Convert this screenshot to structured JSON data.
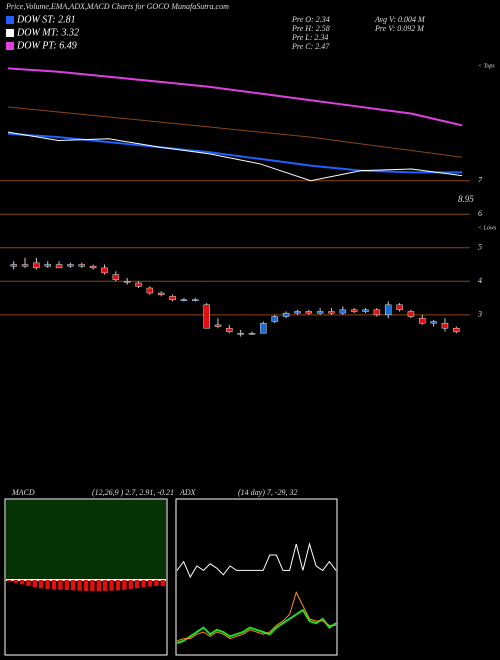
{
  "header": {
    "title": "Price,Volume,EMA,ADX,MACD Charts for GOCO MunafaSutra.com"
  },
  "legend": [
    {
      "label": "DOW ST: 2.81",
      "color": "#2060ff"
    },
    {
      "label": "DOW MT: 3.32",
      "color": "#ffffff"
    },
    {
      "label": "DOW PT: 6.49",
      "color": "#e040e0"
    }
  ],
  "info": [
    "Pre  O: 2.34",
    "Pre  H: 2.58",
    "Pre  L: 2.34",
    "Pre  C: 2.47",
    "Avg  V: 0.004  M",
    "Pre  V: 0.092  M"
  ],
  "price_panel": {
    "ylim": [
      2.1,
      10.6
    ],
    "yticks": [
      3,
      4,
      5,
      6,
      7
    ],
    "annotations": [
      "8.95",
      "< Tops",
      "< Lows"
    ],
    "up_color": "#1a6ad8",
    "down_color": "#e01010",
    "candles": [
      [
        4.45,
        4.6,
        4.35,
        4.5
      ],
      [
        4.5,
        4.7,
        4.4,
        4.45
      ],
      [
        4.55,
        4.7,
        4.35,
        4.4
      ],
      [
        4.45,
        4.6,
        4.4,
        4.5
      ],
      [
        4.5,
        4.6,
        4.4,
        4.4
      ],
      [
        4.45,
        4.55,
        4.4,
        4.5
      ],
      [
        4.5,
        4.55,
        4.4,
        4.45
      ],
      [
        4.45,
        4.5,
        4.35,
        4.4
      ],
      [
        4.4,
        4.5,
        4.2,
        4.25
      ],
      [
        4.2,
        4.3,
        4.0,
        4.05
      ],
      [
        4.0,
        4.1,
        3.9,
        4.0
      ],
      [
        3.95,
        4.0,
        3.8,
        3.85
      ],
      [
        3.8,
        3.85,
        3.6,
        3.65
      ],
      [
        3.65,
        3.7,
        3.55,
        3.6
      ],
      [
        3.55,
        3.6,
        3.4,
        3.45
      ],
      [
        3.45,
        3.5,
        3.4,
        3.45
      ],
      [
        3.45,
        3.5,
        3.4,
        3.45
      ],
      [
        3.3,
        3.35,
        2.6,
        2.6
      ],
      [
        2.7,
        2.9,
        2.6,
        2.65
      ],
      [
        2.6,
        2.7,
        2.45,
        2.5
      ],
      [
        2.45,
        2.55,
        2.35,
        2.45
      ],
      [
        2.45,
        2.5,
        2.4,
        2.45
      ],
      [
        2.45,
        2.8,
        2.45,
        2.75
      ],
      [
        2.8,
        3.0,
        2.75,
        2.95
      ],
      [
        2.95,
        3.1,
        2.9,
        3.05
      ],
      [
        3.05,
        3.15,
        3.0,
        3.1
      ],
      [
        3.1,
        3.15,
        3.0,
        3.05
      ],
      [
        3.05,
        3.2,
        3.0,
        3.1
      ],
      [
        3.1,
        3.2,
        3.0,
        3.05
      ],
      [
        3.05,
        3.25,
        3.0,
        3.15
      ],
      [
        3.15,
        3.2,
        3.05,
        3.1
      ],
      [
        3.1,
        3.2,
        3.05,
        3.15
      ],
      [
        3.15,
        3.2,
        2.95,
        3.0
      ],
      [
        3.0,
        3.4,
        2.9,
        3.3
      ],
      [
        3.3,
        3.35,
        3.1,
        3.15
      ],
      [
        3.1,
        3.15,
        2.9,
        2.95
      ],
      [
        2.9,
        3.0,
        2.7,
        2.75
      ],
      [
        2.75,
        2.85,
        2.65,
        2.8
      ],
      [
        2.75,
        2.9,
        2.5,
        2.6
      ],
      [
        2.6,
        2.65,
        2.45,
        2.5
      ]
    ],
    "lines": [
      {
        "color": "#e040e0",
        "values": [
          10.35,
          10.25,
          10.1,
          9.95,
          9.8,
          9.6,
          9.4,
          9.2,
          9.0,
          8.65
        ]
      },
      {
        "color": "#8b4513",
        "values": [
          9.2,
          9.05,
          8.9,
          8.75,
          8.6,
          8.45,
          8.3,
          8.1,
          7.9,
          7.7
        ]
      },
      {
        "color": "#2060ff",
        "values": [
          8.4,
          8.3,
          8.15,
          8.0,
          7.85,
          7.65,
          7.45,
          7.3,
          7.25,
          7.25
        ]
      },
      {
        "color": "#ffffff",
        "values": [
          8.45,
          8.2,
          8.25,
          8.0,
          7.8,
          7.5,
          7.0,
          7.3,
          7.35,
          7.15
        ]
      }
    ]
  },
  "macd": {
    "label": "MACD",
    "params": "(12,26,9 ) 2.7, 2.91, -0.21",
    "ylim": [
      -2.5,
      2.7
    ],
    "color": "#e01010",
    "hist": [
      -0.05,
      -0.1,
      -0.15,
      -0.2,
      -0.25,
      -0.28,
      -0.3,
      -0.32,
      -0.33,
      -0.34,
      -0.35,
      -0.36,
      -0.37,
      -0.38,
      -0.38,
      -0.37,
      -0.36,
      -0.35,
      -0.33,
      -0.3,
      -0.28,
      -0.25,
      -0.22,
      -0.2,
      -0.21
    ]
  },
  "adx": {
    "label": "ADX",
    "params": "(14  day) 7, -29, 32",
    "ylim": [
      0,
      70
    ],
    "lines": [
      {
        "color": "#ffffff",
        "values": [
          38,
          42,
          35,
          40,
          38,
          41,
          39,
          36,
          40,
          38,
          38,
          38,
          38,
          38,
          45,
          45,
          38,
          38,
          50,
          38,
          50,
          40,
          38,
          42,
          38
        ]
      },
      {
        "color": "#22dd22",
        "values": [
          5,
          6,
          8,
          10,
          12,
          9,
          11,
          10,
          8,
          9,
          10,
          12,
          11,
          10,
          9,
          12,
          14,
          16,
          18,
          20,
          15,
          14,
          16,
          12,
          14
        ]
      },
      {
        "color": "#ff8c1a",
        "values": [
          6,
          7,
          7,
          9,
          10,
          8,
          10,
          9,
          7,
          8,
          9,
          11,
          10,
          9,
          10,
          13,
          15,
          18,
          28,
          22,
          16,
          15,
          15,
          13,
          13
        ]
      }
    ]
  }
}
